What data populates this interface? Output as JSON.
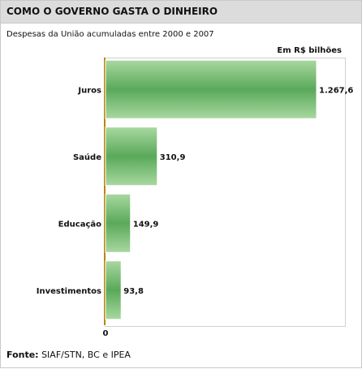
{
  "header": {
    "title": "COMO O GOVERNO GASTA O DINHEIRO",
    "subtitle": "Despesas da União acumuladas entre 2000 e 2007",
    "unit": "Em R$ bilhões"
  },
  "footer": {
    "source_label": "Fonte:",
    "source_text": "SIAF/STN, BC e IPEA"
  },
  "chart_data": {
    "type": "bar",
    "orientation": "horizontal",
    "categories": [
      "Juros",
      "Saúde",
      "Educação",
      "Investimentos"
    ],
    "values": [
      1267.6,
      310.9,
      149.9,
      93.8
    ],
    "value_labels": [
      "1.267,6",
      "310,9",
      "149,9",
      "93,8"
    ],
    "x_tick_labels": [
      "0"
    ],
    "xlim": [
      0,
      1267.6
    ],
    "bar_color": "#5aa95a",
    "bar_color_light": "#a8d8a0",
    "axis_color": "#b8860b",
    "grid": false
  }
}
